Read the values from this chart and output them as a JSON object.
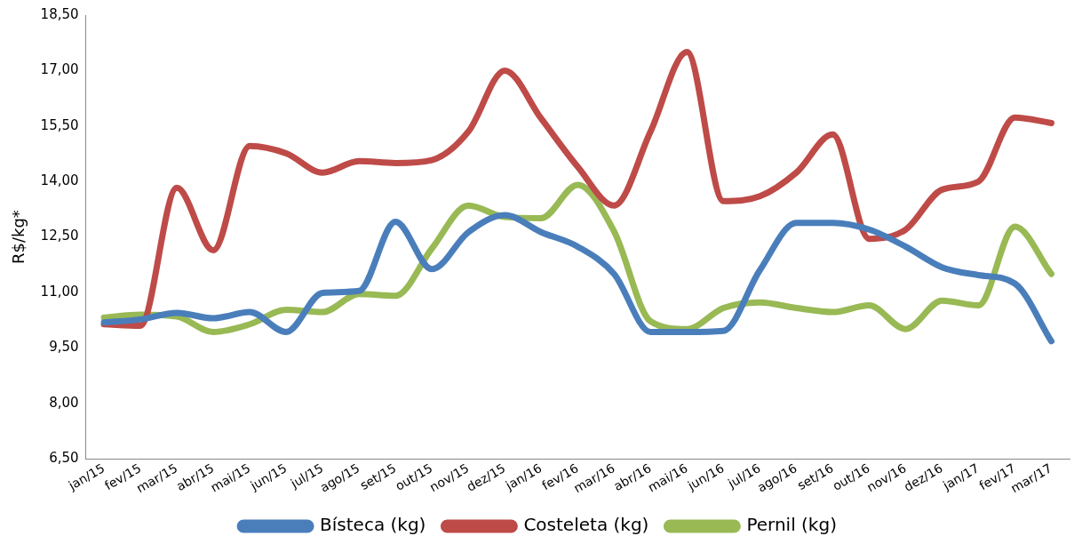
{
  "chart_data": {
    "type": "line",
    "ylabel": "R$/kg*",
    "categories": [
      "jan/15",
      "fev/15",
      "mar/15",
      "abr/15",
      "mai/15",
      "jun/15",
      "jul/15",
      "ago/15",
      "set/15",
      "out/15",
      "nov/15",
      "dez/15",
      "jan/16",
      "fev/16",
      "mar/16",
      "abr/16",
      "mai/16",
      "jun/16",
      "jul/16",
      "ago/16",
      "set/16",
      "out/16",
      "nov/16",
      "dez/16",
      "jan/17",
      "fev/17",
      "mar/17"
    ],
    "series": [
      {
        "name": "Bísteca (kg)",
        "color": "#4a7ebb",
        "values": [
          10.19,
          10.27,
          10.45,
          10.3,
          10.47,
          9.93,
          10.99,
          11.04,
          12.91,
          11.63,
          12.63,
          13.09,
          12.63,
          12.24,
          11.5,
          9.93,
          9.93,
          9.96,
          11.6,
          12.88,
          12.88,
          12.7,
          12.24,
          11.68,
          11.47,
          11.24,
          9.68
        ]
      },
      {
        "name": "Costeleta (kg)",
        "color": "#be4b48",
        "values": [
          10.14,
          10.1,
          13.83,
          12.14,
          14.96,
          14.76,
          14.24,
          14.55,
          14.5,
          14.58,
          15.35,
          17.0,
          15.7,
          14.4,
          13.35,
          15.35,
          17.5,
          13.47,
          13.6,
          14.24,
          15.27,
          12.45,
          12.7,
          13.78,
          14.0,
          15.73,
          15.58
        ]
      },
      {
        "name": "Pernil (kg)",
        "color": "#98b954",
        "values": [
          10.32,
          10.4,
          10.35,
          9.93,
          10.14,
          10.53,
          10.47,
          10.96,
          10.91,
          12.19,
          13.35,
          13.04,
          13.01,
          13.91,
          12.65,
          10.22,
          10.01,
          10.58,
          10.73,
          10.58,
          10.47,
          10.65,
          10.01,
          10.78,
          10.65,
          12.78,
          11.5
        ]
      }
    ],
    "ylim": [
      6.5,
      18.5
    ],
    "yticks": [
      {
        "value": 6.5,
        "label": "6,50"
      },
      {
        "value": 8,
        "label": "8,00"
      },
      {
        "value": 9.5,
        "label": "9,50"
      },
      {
        "value": 11,
        "label": "11,00"
      },
      {
        "value": 12.5,
        "label": "12,50"
      },
      {
        "value": 14,
        "label": "14,00"
      },
      {
        "value": 15.5,
        "label": "15,50"
      },
      {
        "value": 17,
        "label": "17,00"
      },
      {
        "value": 18.5,
        "label": "18,50"
      }
    ],
    "grid": false,
    "legend": "bottom",
    "marker": "none",
    "line_style": "solid"
  }
}
